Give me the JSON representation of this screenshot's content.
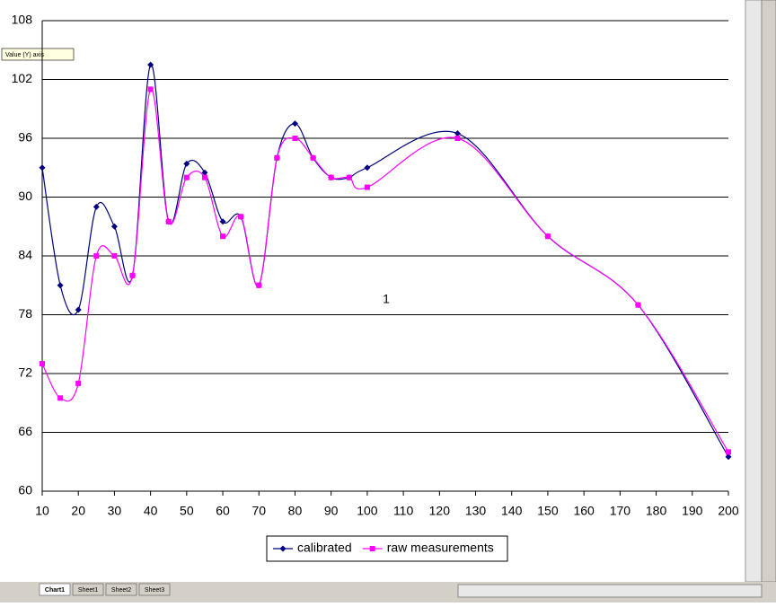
{
  "chart_data": {
    "type": "line",
    "annotation": "1",
    "x": [
      10,
      15,
      20,
      25,
      30,
      35,
      40,
      45,
      50,
      55,
      60,
      65,
      70,
      75,
      80,
      85,
      90,
      95,
      100,
      125,
      150,
      175,
      200
    ],
    "series": [
      {
        "name": "calibrated",
        "color": "#000080",
        "marker": "diamond",
        "values": [
          93,
          81,
          78.5,
          89,
          87,
          82,
          103.5,
          87.5,
          93.4,
          92.5,
          87.5,
          88,
          81,
          94,
          97.5,
          94,
          92,
          92,
          93,
          96.5,
          86,
          79,
          63.5
        ]
      },
      {
        "name": "raw measurements",
        "color": "#ff00ff",
        "marker": "square",
        "values": [
          73,
          69.5,
          71,
          84,
          84,
          82,
          101,
          87.5,
          92,
          92,
          86,
          88,
          81,
          94,
          96,
          94,
          92,
          92,
          91,
          96,
          86,
          79,
          64
        ]
      }
    ],
    "xlim": [
      10,
      200
    ],
    "xticks": [
      10,
      20,
      30,
      40,
      50,
      60,
      70,
      80,
      90,
      100,
      110,
      120,
      130,
      140,
      150,
      160,
      170,
      180,
      190,
      200
    ],
    "ylim": [
      60,
      108
    ],
    "yticks": [
      60,
      66,
      72,
      78,
      84,
      90,
      96,
      102,
      108
    ],
    "grid": true,
    "smooth": true,
    "legend": "bottom"
  },
  "tooltip": "Value (Y) axis",
  "sheet_tabs": [
    "Chart1",
    "Sheet1",
    "Sheet2",
    "Sheet3"
  ]
}
